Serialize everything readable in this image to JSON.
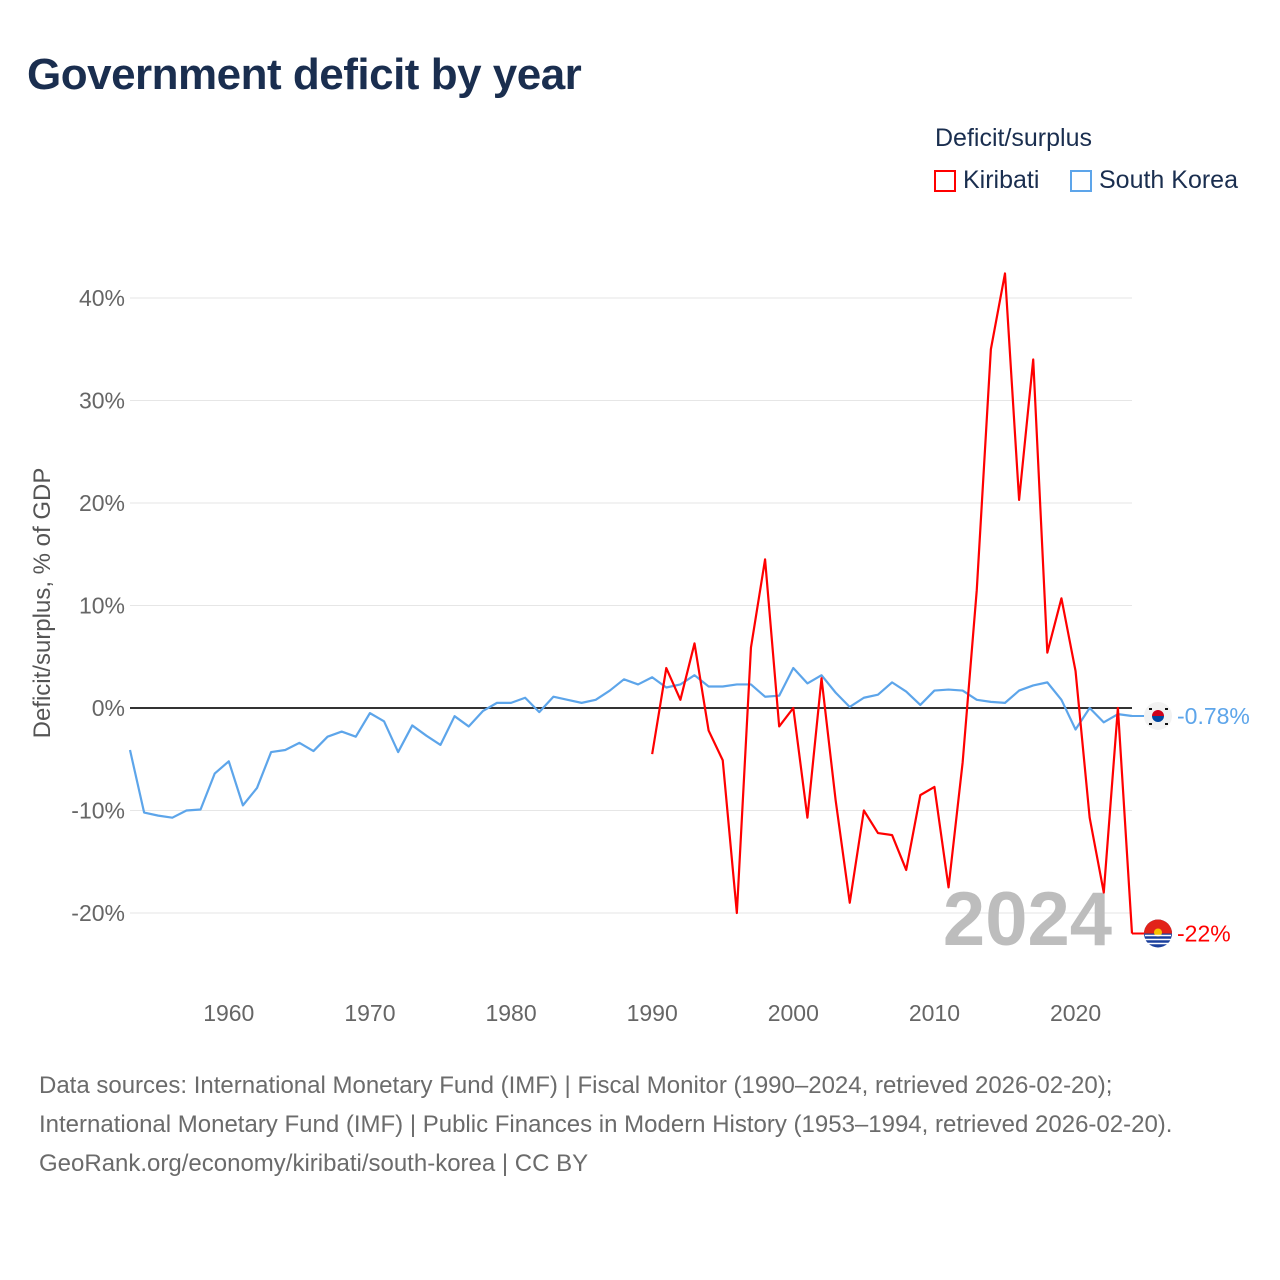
{
  "header": {
    "title": "Government deficit by year"
  },
  "legend": {
    "title": "Deficit/surplus",
    "items": [
      {
        "label": "Kiribati",
        "color": "#ff0000"
      },
      {
        "label": "South Korea",
        "color": "#5da5ea"
      }
    ]
  },
  "chart_data": {
    "type": "line",
    "title": "Government deficit by year",
    "ylabel": "Deficit/surplus, % of GDP",
    "xlabel": "",
    "ylim": [
      -25,
      45
    ],
    "xlim": [
      1953,
      2024
    ],
    "yticks": [
      -20,
      -10,
      0,
      10,
      20,
      30,
      40
    ],
    "ytick_labels": [
      "-20%",
      "-10%",
      "0%",
      "10%",
      "20%",
      "30%",
      "40%"
    ],
    "xticks": [
      1960,
      1970,
      1980,
      1990,
      2000,
      2010,
      2020
    ],
    "xtick_labels": [
      "1960",
      "1970",
      "1980",
      "1990",
      "2000",
      "2010",
      "2020"
    ],
    "grid": true,
    "year_watermark": "2024",
    "series": [
      {
        "name": "South Korea",
        "color": "#5da5ea",
        "end_label": "-0.78%",
        "start_year": 1953,
        "values": [
          -4.1,
          -10.2,
          -10.5,
          -10.7,
          -10.0,
          -9.9,
          -6.4,
          -5.2,
          -9.5,
          -7.8,
          -4.3,
          -4.1,
          -3.4,
          -4.2,
          -2.8,
          -2.3,
          -2.8,
          -0.5,
          -1.3,
          -4.3,
          -1.7,
          -2.7,
          -3.6,
          -0.8,
          -1.8,
          -0.3,
          0.5,
          0.5,
          1.0,
          -0.4,
          1.1,
          0.8,
          0.5,
          0.8,
          1.7,
          2.8,
          2.3,
          3.0,
          2.0,
          2.3,
          3.2,
          2.1,
          2.1,
          2.3,
          2.3,
          1.1,
          1.2,
          3.9,
          2.4,
          3.2,
          1.5,
          0.1,
          1.0,
          1.3,
          2.5,
          1.6,
          0.3,
          1.7,
          1.8,
          1.7,
          0.8,
          0.6,
          0.5,
          1.7,
          2.2,
          2.5,
          0.8,
          -2.1,
          0.0,
          -1.4,
          -0.6,
          -0.78
        ]
      },
      {
        "name": "Kiribati",
        "color": "#ff0000",
        "end_label": "-22%",
        "start_year": 1990,
        "values": [
          -4.5,
          3.9,
          0.8,
          6.3,
          -2.2,
          -5.1,
          -20.0,
          5.9,
          14.5,
          -1.8,
          0.0,
          -10.7,
          2.9,
          -9.0,
          -19.0,
          -10.0,
          -12.2,
          -12.4,
          -15.8,
          -8.5,
          -7.7,
          -17.5,
          -5.3,
          11.5,
          35.0,
          42.4,
          20.3,
          34.0,
          5.4,
          10.7,
          3.6,
          -10.7,
          -18.0,
          0.0,
          -22.0
        ]
      }
    ]
  },
  "footer": {
    "sources": "Data sources: International Monetary Fund (IMF) | Fiscal Monitor (1990–2024, retrieved 2026-02-20); International Monetary Fund (IMF) | Public Finances in Modern History (1953–1994, retrieved 2026-02-20).",
    "link": "GeoRank.org/economy/kiribati/south-korea | CC BY"
  }
}
